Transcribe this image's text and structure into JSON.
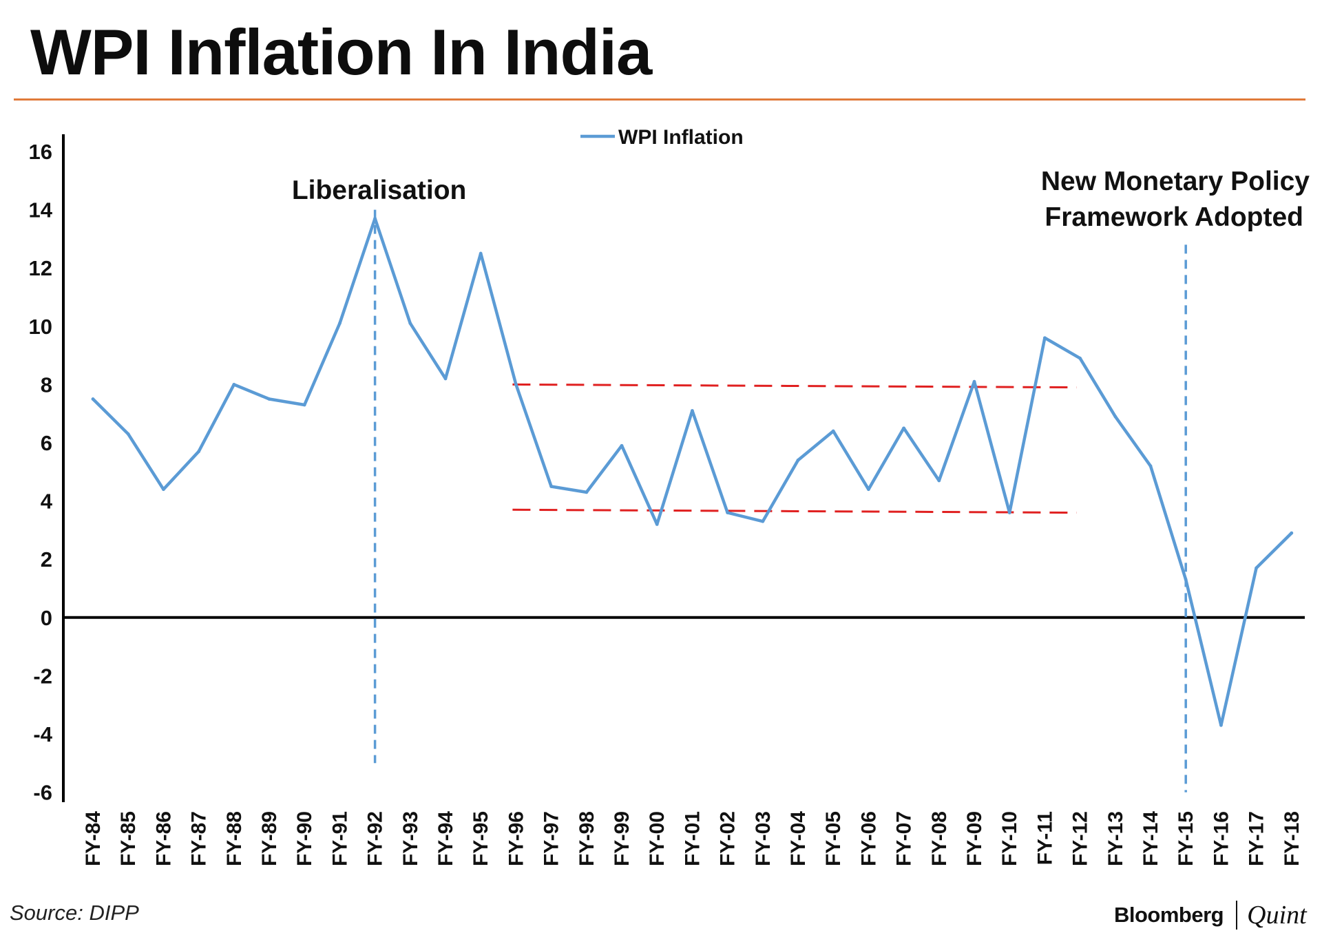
{
  "page": {
    "title": "WPI Inflation In India",
    "accent_color": "#e07a3a",
    "source": "Source: DIPP",
    "brand_left": "Bloomberg",
    "brand_right": "Quint"
  },
  "chart_data": {
    "type": "line",
    "title": "WPI Inflation In India",
    "xlabel": "",
    "ylabel": "",
    "ylim": [
      -6,
      16
    ],
    "yticks": [
      16,
      14,
      12,
      10,
      8,
      6,
      4,
      2,
      0,
      -2,
      -4,
      -6
    ],
    "categories": [
      "FY-84",
      "FY-85",
      "FY-86",
      "FY-87",
      "FY-88",
      "FY-89",
      "FY-90",
      "FY-91",
      "FY-92",
      "FY-93",
      "FY-94",
      "FY-95",
      "FY-96",
      "FY-97",
      "FY-98",
      "FY-99",
      "FY-00",
      "FY-01",
      "FY-02",
      "FY-03",
      "FY-04",
      "FY-05",
      "FY-06",
      "FY-07",
      "FY-08",
      "FY-09",
      "FY-10",
      "FY-11",
      "FY-12",
      "FY-13",
      "FY-14",
      "FY-15",
      "FY-16",
      "FY-17",
      "FY-18"
    ],
    "series": [
      {
        "name": "WPI Inflation",
        "color": "#5b9bd5",
        "values": [
          7.5,
          6.3,
          4.4,
          5.7,
          8.0,
          7.5,
          7.3,
          10.1,
          13.7,
          10.1,
          8.2,
          12.5,
          8.0,
          4.5,
          4.3,
          5.9,
          3.2,
          7.1,
          3.6,
          3.3,
          5.4,
          6.4,
          4.4,
          6.5,
          4.7,
          8.1,
          3.6,
          9.6,
          8.9,
          6.9,
          5.2,
          1.3,
          -3.7,
          1.7,
          2.9
        ]
      }
    ],
    "legend": {
      "position": "top-center",
      "label": "WPI Inflation"
    },
    "zero_line": {
      "value": 0,
      "color": "#000000"
    },
    "range_lines": [
      {
        "name": "upper-band",
        "from": "FY-96",
        "to": "FY-12",
        "y_start": 8.0,
        "y_end": 7.9,
        "color": "#e02020",
        "style": "dashed"
      },
      {
        "name": "lower-band",
        "from": "FY-96",
        "to": "FY-12",
        "y_start": 3.7,
        "y_end": 3.6,
        "color": "#e02020",
        "style": "dashed"
      }
    ],
    "event_lines": [
      {
        "name": "liberalisation",
        "x": "FY-92",
        "y_from": 14,
        "y_to": -5,
        "color": "#5b9bd5",
        "style": "dashed"
      },
      {
        "name": "monetary-policy",
        "x": "FY-15",
        "y_from": 12.8,
        "y_to": -6,
        "color": "#5b9bd5",
        "style": "dashed"
      }
    ],
    "annotations": [
      {
        "name": "liberalisation-label",
        "lines": [
          "Liberalisation"
        ],
        "x": "FY-92"
      },
      {
        "name": "monetary-policy-label",
        "lines": [
          "New Monetary Policy",
          "Framework Adopted"
        ],
        "x": "FY-15"
      }
    ]
  }
}
